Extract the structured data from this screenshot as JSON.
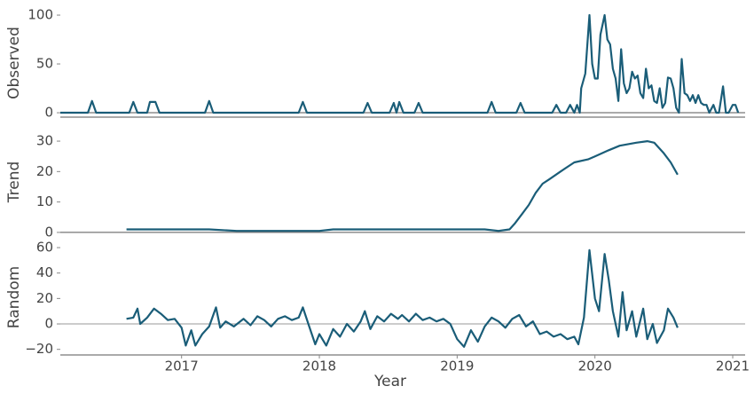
{
  "chart_data": [
    {
      "type": "line",
      "ylabel": "Observed",
      "color": "#1a5d78",
      "x": [
        2016.12,
        2016.32,
        2016.35,
        2016.38,
        2016.62,
        2016.65,
        2016.68,
        2016.75,
        2016.77,
        2016.81,
        2016.84,
        2017.17,
        2017.2,
        2017.23,
        2017.85,
        2017.88,
        2017.91,
        2018.32,
        2018.35,
        2018.38,
        2018.51,
        2018.54,
        2018.56,
        2018.58,
        2018.61,
        2018.69,
        2018.72,
        2018.75,
        2019.22,
        2019.25,
        2019.28,
        2019.43,
        2019.46,
        2019.49,
        2019.69,
        2019.72,
        2019.75,
        2019.79,
        2019.82,
        2019.85,
        2019.87,
        2019.89,
        2019.9,
        2019.93,
        2019.96,
        2019.98,
        2020.0,
        2020.02,
        2020.04,
        2020.07,
        2020.09,
        2020.11,
        2020.13,
        2020.15,
        2020.17,
        2020.19,
        2020.21,
        2020.23,
        2020.25,
        2020.27,
        2020.29,
        2020.31,
        2020.33,
        2020.35,
        2020.37,
        2020.39,
        2020.41,
        2020.43,
        2020.45,
        2020.47,
        2020.49,
        2020.51,
        2020.53,
        2020.55,
        2020.57,
        2020.59,
        2020.61,
        2020.63,
        2020.65,
        2020.67,
        2020.69,
        2020.71,
        2020.73,
        2020.75,
        2020.77,
        2020.79,
        2020.81,
        2020.83,
        2020.86,
        2020.88,
        2020.9,
        2020.93,
        2020.95,
        2020.97,
        2021.0,
        2021.02,
        2021.04
      ],
      "values": [
        0,
        0,
        12,
        0,
        0,
        11,
        0,
        0,
        11,
        11,
        0,
        0,
        12,
        0,
        0,
        11,
        0,
        0,
        10,
        0,
        0,
        10,
        0,
        11,
        0,
        0,
        10,
        0,
        0,
        11,
        0,
        0,
        10,
        0,
        0,
        8,
        0,
        0,
        8,
        0,
        8,
        0,
        25,
        40,
        100,
        50,
        35,
        35,
        80,
        100,
        75,
        70,
        45,
        35,
        12,
        65,
        30,
        20,
        25,
        42,
        35,
        38,
        20,
        15,
        45,
        25,
        28,
        12,
        10,
        25,
        5,
        10,
        36,
        35,
        25,
        5,
        0,
        55,
        20,
        18,
        12,
        18,
        10,
        18,
        10,
        8,
        8,
        0,
        8,
        0,
        0,
        27,
        0,
        0,
        8,
        8,
        0
      ],
      "xlim": [
        2016.12,
        2021.09
      ],
      "ylim": [
        -4.5,
        106.4
      ],
      "yticks": [
        0,
        50,
        100
      ]
    },
    {
      "type": "line",
      "ylabel": "Trend",
      "color": "#1a5d78",
      "x": [
        2016.6,
        2016.9,
        2017.2,
        2017.4,
        2017.8,
        2018.0,
        2018.1,
        2018.6,
        2019.0,
        2019.2,
        2019.3,
        2019.38,
        2019.42,
        2019.47,
        2019.52,
        2019.57,
        2019.62,
        2019.67,
        2019.75,
        2019.85,
        2019.95,
        2020.0,
        2020.1,
        2020.18,
        2020.3,
        2020.38,
        2020.43,
        2020.5,
        2020.55,
        2020.6
      ],
      "values": [
        1,
        1,
        1,
        0.5,
        0.5,
        0.5,
        1,
        1,
        1,
        1,
        0.5,
        1,
        3,
        6,
        9,
        13,
        16,
        17.5,
        20,
        23,
        24,
        25,
        27,
        28.5,
        29.5,
        30,
        29.5,
        26,
        23,
        19
      ],
      "xlim": [
        2016.12,
        2021.09
      ],
      "ylim": [
        -1.2,
        34.1
      ],
      "yticks": [
        0,
        10,
        20,
        30
      ]
    },
    {
      "type": "line",
      "ylabel": "Random",
      "xlabel": "Year",
      "color": "#1a5d78",
      "x": [
        2016.6,
        2016.65,
        2016.68,
        2016.7,
        2016.75,
        2016.8,
        2016.85,
        2016.9,
        2016.95,
        2017.0,
        2017.03,
        2017.07,
        2017.1,
        2017.15,
        2017.2,
        2017.25,
        2017.28,
        2017.32,
        2017.38,
        2017.45,
        2017.5,
        2017.55,
        2017.6,
        2017.65,
        2017.7,
        2017.75,
        2017.8,
        2017.85,
        2017.88,
        2017.92,
        2017.97,
        2018.0,
        2018.05,
        2018.1,
        2018.15,
        2018.2,
        2018.25,
        2018.3,
        2018.33,
        2018.37,
        2018.42,
        2018.47,
        2018.52,
        2018.57,
        2018.6,
        2018.65,
        2018.7,
        2018.75,
        2018.8,
        2018.85,
        2018.9,
        2018.95,
        2019.0,
        2019.05,
        2019.1,
        2019.15,
        2019.2,
        2019.25,
        2019.3,
        2019.35,
        2019.4,
        2019.45,
        2019.5,
        2019.55,
        2019.6,
        2019.65,
        2019.7,
        2019.75,
        2019.8,
        2019.85,
        2019.88,
        2019.92,
        2019.96,
        2020.0,
        2020.03,
        2020.07,
        2020.1,
        2020.13,
        2020.17,
        2020.2,
        2020.23,
        2020.27,
        2020.3,
        2020.35,
        2020.38,
        2020.42,
        2020.45,
        2020.5,
        2020.53,
        2020.57,
        2020.6
      ],
      "values": [
        4,
        5,
        12,
        0,
        5,
        12,
        8,
        3,
        4,
        -3,
        -17,
        -5,
        -17,
        -8,
        -2,
        13,
        -3,
        2,
        -2,
        4,
        -1,
        6,
        3,
        -2,
        4,
        6,
        3,
        5,
        13,
        0,
        -16,
        -8,
        -17,
        -4,
        -10,
        0,
        -6,
        2,
        10,
        -4,
        6,
        2,
        8,
        4,
        7,
        2,
        8,
        3,
        5,
        2,
        4,
        0,
        -12,
        -18,
        -5,
        -14,
        -2,
        5,
        2,
        -3,
        4,
        7,
        -2,
        2,
        -8,
        -6,
        -10,
        -8,
        -12,
        -10,
        -16,
        5,
        58,
        20,
        10,
        55,
        35,
        10,
        -10,
        25,
        -5,
        10,
        -10,
        12,
        -12,
        0,
        -15,
        -5,
        12,
        5,
        -3
      ],
      "xlim": [
        2016.12,
        2021.09
      ],
      "ylim": [
        -24.4,
        66.3
      ],
      "yticks": [
        {
          "value": -20,
          "label": "−20"
        },
        0,
        20,
        40,
        60
      ],
      "xticks": [
        2017,
        2018,
        2019,
        2020,
        2021
      ]
    }
  ]
}
